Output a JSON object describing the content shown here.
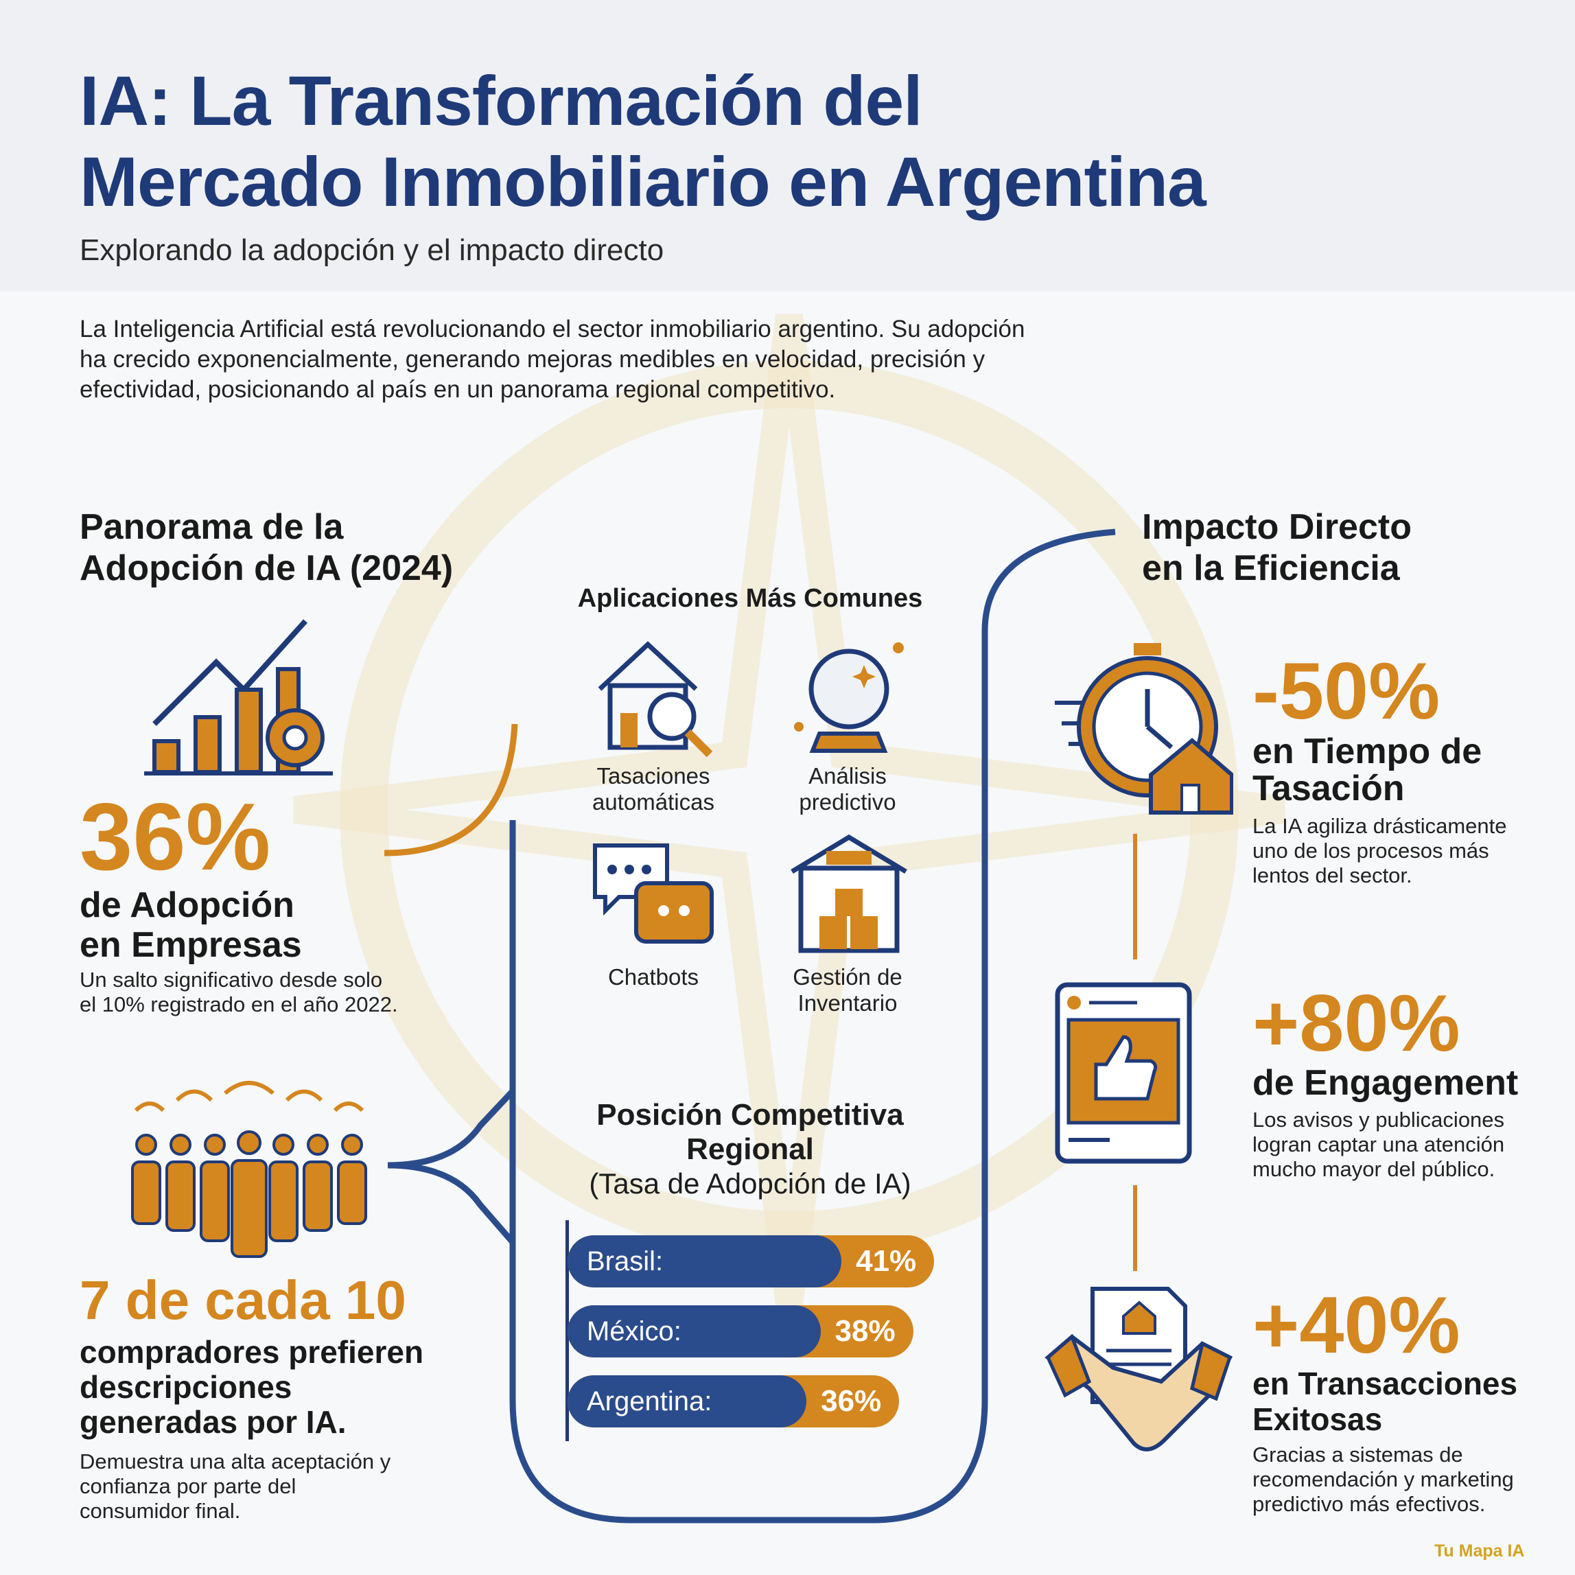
{
  "header": {
    "title_line1": "IA: La Transformación del",
    "title_line2": "Mercado Inmobiliario en Argentina",
    "subtitle": "Explorando la adopción y el impacto directo"
  },
  "intro": "La Inteligencia Artificial está revolucionando el sector inmobiliario argentino. Su adopción ha crecido exponencialmente, generando mejoras medibles en velocidad, precisión y efectividad, posicionando al país en un panorama regional competitivo.",
  "left": {
    "heading_line1": "Panorama de la",
    "heading_line2": "Adopción de IA (2024)",
    "stat1": {
      "value": "36%",
      "label_line1": "de Adopción",
      "label_line2": "en Empresas",
      "desc_line1": "Un salto significativo desde solo",
      "desc_line2": "el 10% registrado en el año 2022."
    },
    "stat2": {
      "value": "7 de cada 10",
      "label_line1": "compradores prefieren",
      "label_line2": "descripciones",
      "label_line3": "generadas por IA.",
      "desc_line1": "Demuestra una alta aceptación y",
      "desc_line2": "confianza por parte del",
      "desc_line3": "consumidor final."
    }
  },
  "applications": {
    "title": "Aplicaciones Más Comunes",
    "items": [
      {
        "line1": "Tasaciones",
        "line2": "automáticas",
        "icon": "house-magnifier-icon"
      },
      {
        "line1": "Análisis",
        "line2": "predictivo",
        "icon": "crystal-ball-icon"
      },
      {
        "line1": "Chatbots",
        "line2": "",
        "icon": "chatbot-icon"
      },
      {
        "line1": "Gestión de",
        "line2": "Inventario",
        "icon": "warehouse-icon"
      }
    ]
  },
  "chart_data": {
    "type": "bar",
    "title": "Posición Competitiva Regional",
    "subtitle": "(Tasa de Adopción de IA)",
    "categories": [
      "Brasil:",
      "México:",
      "Argentina:"
    ],
    "values": [
      41,
      38,
      36
    ],
    "labels": [
      "41%",
      "38%",
      "36%"
    ],
    "colors": {
      "bar": "#2b4c8c",
      "value": "#d4861f"
    }
  },
  "right": {
    "heading_line1": "Impacto Directo",
    "heading_line2": "en la Eficiencia",
    "items": [
      {
        "value": "-50%",
        "label_line1": "en Tiempo de",
        "label_line2": "Tasación",
        "desc_line1": "La IA agiliza drásticamente",
        "desc_line2": "uno de los procesos más",
        "desc_line3": "lentos del sector."
      },
      {
        "value": "+80%",
        "label_line1": "de Engagement",
        "label_line2": "",
        "desc_line1": "Los avisos y publicaciones",
        "desc_line2": "logran captar una atención",
        "desc_line3": "mucho mayor del público."
      },
      {
        "value": "+40%",
        "label_line1": "en Transacciones",
        "label_line2": "Exitosas",
        "desc_line1": "Gracias a sistemas de",
        "desc_line2": "recomendación y marketing",
        "desc_line3": "predictivo más efectivos."
      }
    ]
  },
  "footer": {
    "brand": "Tu Mapa IA"
  },
  "colors": {
    "navy": "#1f3a78",
    "orange": "#d4861f",
    "bar_blue": "#2b4c8c"
  }
}
